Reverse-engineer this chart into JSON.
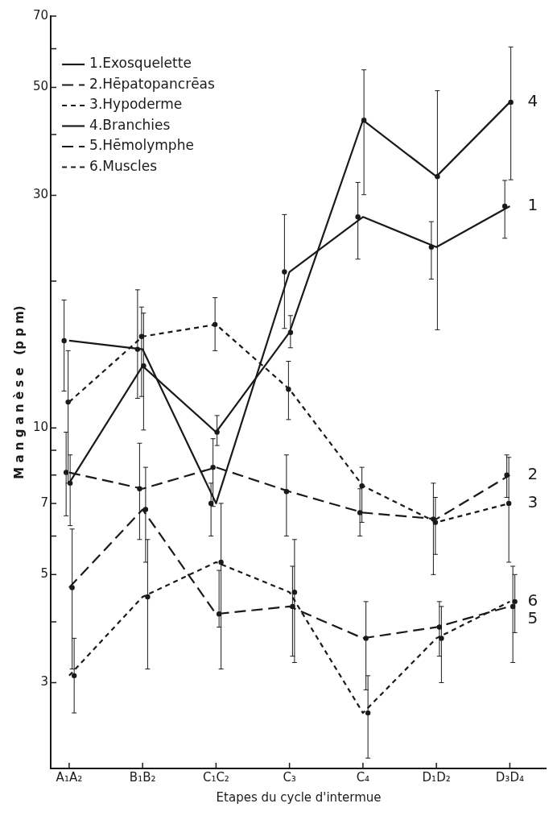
{
  "chart_data": {
    "type": "line",
    "xlabel": "Etapes du cycle d'intermue",
    "ylabel": "M a n g a n è s e   (p p m)",
    "categories": [
      "A₁A₂",
      "B₁B₂",
      "C₁C₂",
      "C₃",
      "C₄",
      "D₁D₂",
      "D₃D₄"
    ],
    "log": true,
    "ylim": [
      2,
      70
    ],
    "yticks": [
      {
        "value": 4,
        "label": null
      },
      3,
      5,
      {
        "value": 6,
        "label": null
      },
      7,
      {
        "value": 8,
        "label": null
      },
      {
        "value": 9,
        "label": null
      },
      10,
      {
        "value": 20,
        "label": null
      },
      30,
      {
        "value": 40,
        "label": null
      },
      50,
      {
        "value": 60,
        "label": null
      },
      70
    ],
    "grid": false,
    "legend": "top left",
    "marker": "circle",
    "series": [
      {
        "name": "1.Exosquelette",
        "color": "#1a1a1a",
        "line_style": "solid",
        "values": [
          15.1,
          14.5,
          7.0,
          20.9,
          27.1,
          23.5,
          28.5
        ],
        "errors": [
          [
            11.9,
            18.3
          ],
          [
            11.5,
            19.2
          ],
          [
            6.0,
            7.7
          ],
          [
            16,
            27.4
          ],
          [
            22.2,
            31.9
          ],
          [
            20.2,
            26.5
          ],
          [
            24.5,
            32.2
          ]
        ]
      },
      {
        "name": "2.Hēpatopancrēas",
        "color": "#1a1a1a",
        "line_style": "dashed",
        "values": [
          8.1,
          7.5,
          8.3,
          7.4,
          6.7,
          6.5,
          8.0
        ],
        "errors": [
          [
            6.6,
            9.8
          ],
          [
            5.9,
            9.3
          ],
          [
            6.9,
            9.5
          ],
          [
            6.0,
            8.8
          ],
          [
            6.0,
            7.5
          ],
          [
            5.0,
            7.7
          ],
          [
            7.2,
            8.8
          ]
        ]
      },
      {
        "name": "3.Hypoderme",
        "color": "#1a1a1a",
        "line_style": "dotted",
        "values": [
          11.3,
          15.4,
          16.3,
          12.0,
          7.6,
          6.4,
          7.0
        ],
        "errors": [
          [
            7.7,
            14.4
          ],
          [
            11.6,
            17.7
          ],
          [
            14.4,
            18.5
          ],
          [
            10.4,
            13.7
          ],
          [
            6.4,
            8.3
          ],
          [
            5.5,
            7.2
          ],
          [
            5.3,
            8.7
          ]
        ]
      },
      {
        "name": "4.Branchies",
        "color": "#1a1a1a",
        "line_style": "solid",
        "values": [
          7.7,
          13.4,
          9.8,
          15.7,
          42.8,
          32.8,
          46.6
        ],
        "errors": [
          [
            6.3,
            8.8
          ],
          [
            9.9,
            17.2
          ],
          [
            9.2,
            10.6
          ],
          [
            14.6,
            17
          ],
          [
            30.1,
            54.3
          ],
          [
            15.9,
            49.2
          ],
          [
            32.3,
            60.5
          ]
        ]
      },
      {
        "name": "5.Hēmolymphe",
        "color": "#1a1a1a",
        "line_style": "dashed",
        "values": [
          4.7,
          6.8,
          4.15,
          4.3,
          3.7,
          3.9,
          4.3
        ],
        "errors": [
          [
            3.2,
            6.2
          ],
          [
            5.3,
            8.3
          ],
          [
            3.9,
            5.1
          ],
          [
            3.4,
            5.2
          ],
          [
            2.9,
            4.4
          ],
          [
            3.4,
            4.4
          ],
          [
            3.3,
            5.2
          ]
        ]
      },
      {
        "name": "6.Muscles",
        "color": "#1a1a1a",
        "line_style": "dotted",
        "values": [
          3.1,
          4.5,
          5.3,
          4.6,
          2.6,
          3.7,
          4.4
        ],
        "errors": [
          [
            2.6,
            3.7
          ],
          [
            3.2,
            5.9
          ],
          [
            3.2,
            7.0
          ],
          [
            3.3,
            5.9
          ],
          [
            2.1,
            3.1
          ],
          [
            3.0,
            4.3
          ],
          [
            3.8,
            5.0
          ]
        ]
      }
    ],
    "annotations": [
      {
        "text": "4",
        "x": "D₃D₄",
        "y": 46.6
      },
      {
        "text": "1",
        "x": "D₃D₄",
        "y": 28.5
      },
      {
        "text": "2",
        "x": "D₃D₄",
        "y": 8.0
      },
      {
        "text": "3",
        "x": "D₃D₄",
        "y": 7.0
      },
      {
        "text": "6",
        "x": "D₃D₄",
        "y": 4.4
      },
      {
        "text": "5",
        "x": "D₃D₄",
        "y": 4.3
      }
    ]
  }
}
